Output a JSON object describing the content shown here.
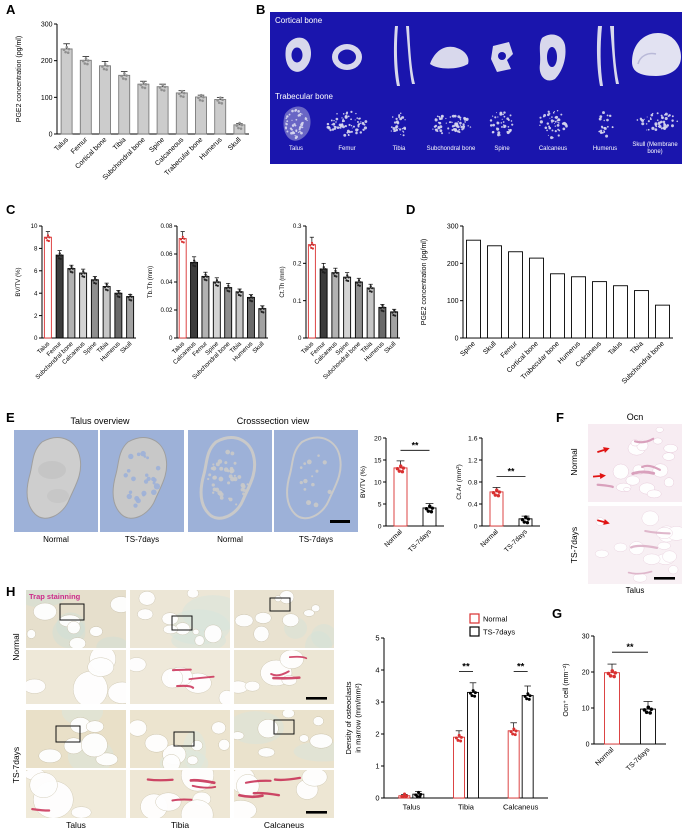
{
  "colors": {
    "accent_red": "#d93030",
    "microct_background": "#1a15ad",
    "panel_e_background": "#9db1d8",
    "bone_gray": "#d8d8ec",
    "trap_stain_magenta": "#cc2b8a",
    "trap_red": "#c83358"
  },
  "panels": {
    "A": {
      "label": "A",
      "chart_data": {
        "type": "bar",
        "ylabel": "PGE2 concentration (pg/ml)",
        "ylim": [
          0,
          300
        ],
        "yticks": [
          0,
          100,
          200,
          300
        ],
        "categories": [
          "Talus",
          "Femur",
          "Cortical bone",
          "Tibia",
          "Subchondral bone",
          "Spine",
          "Calcaneous",
          "Trabecular bone",
          "Humerus",
          "Skull"
        ],
        "values": [
          232,
          201,
          186,
          160,
          136,
          129,
          112,
          101,
          94,
          25
        ],
        "errors": [
          14,
          10,
          12,
          10,
          8,
          7,
          6,
          5,
          6,
          3
        ],
        "fill": "#cccccc",
        "stroke": "#7a7a7a",
        "dot_color": "#909090"
      }
    },
    "B": {
      "label": "B",
      "cortical_label": "Cortical bone",
      "trabecular_label": "Trabecular bone",
      "bones": [
        "Talus",
        "Femur",
        "Tibia",
        "Subchondral bone",
        "Spine",
        "Calcaneus",
        "Humerus",
        "Skull (Membrane bone)"
      ]
    },
    "C": {
      "label": "C",
      "charts": [
        {
          "type": "bar",
          "ylabel": "BV/TV (%)",
          "ylim": [
            0,
            10
          ],
          "yticks": [
            0,
            2,
            4,
            6,
            8,
            10
          ],
          "categories": [
            "Talus",
            "Femur",
            "Subchondral bone",
            "Calcaneus",
            "Spine",
            "Tibia",
            "Humerus",
            "Skull"
          ],
          "values": [
            9.0,
            7.4,
            6.2,
            5.8,
            5.2,
            4.6,
            4.0,
            3.7
          ],
          "errors": [
            0.5,
            0.4,
            0.3,
            0.35,
            0.3,
            0.3,
            0.25,
            0.2
          ],
          "fills": [
            "#ffffff",
            "#3c3c3c",
            "#b2b2b2",
            "#d4d4d4",
            "#8e8e8e",
            "#c6c6c6",
            "#6a6a6a",
            "#a2a2a2"
          ],
          "strokes": [
            "#d93030",
            "#000000",
            "#000000",
            "#000000",
            "#000000",
            "#000000",
            "#000000",
            "#000000"
          ],
          "dot_colors": [
            "#d93030",
            "#222222",
            "#222222",
            "#222222",
            "#222222",
            "#222222",
            "#222222",
            "#222222"
          ]
        },
        {
          "type": "bar",
          "ylabel": "Tb.Th (mm)",
          "ylim": [
            0,
            0.08
          ],
          "yticks": [
            0,
            0.02,
            0.04,
            0.06,
            0.08
          ],
          "categories": [
            "Talus",
            "Calcaneus",
            "Femur",
            "Spine",
            "Subchondral bone",
            "Tibia",
            "Humerus",
            "Skull"
          ],
          "values": [
            0.071,
            0.054,
            0.044,
            0.04,
            0.036,
            0.033,
            0.029,
            0.021
          ],
          "errors": [
            0.005,
            0.004,
            0.003,
            0.003,
            0.003,
            0.002,
            0.002,
            0.002
          ],
          "fills": [
            "#ffffff",
            "#3c3c3c",
            "#b2b2b2",
            "#d4d4d4",
            "#8e8e8e",
            "#c6c6c6",
            "#6a6a6a",
            "#a2a2a2"
          ],
          "strokes": [
            "#d93030",
            "#000000",
            "#000000",
            "#000000",
            "#000000",
            "#000000",
            "#000000",
            "#000000"
          ],
          "dot_colors": [
            "#d93030",
            "#222222",
            "#222222",
            "#222222",
            "#222222",
            "#222222",
            "#222222",
            "#222222"
          ]
        },
        {
          "type": "bar",
          "ylabel": "Ct.Th (mm)",
          "ylim": [
            0,
            0.3
          ],
          "yticks": [
            0,
            0.1,
            0.2,
            0.3
          ],
          "categories": [
            "Talus",
            "Femur",
            "Calcaneus",
            "Spine",
            "Subchondral bone",
            "Tibia",
            "Humerus",
            "Skull"
          ],
          "values": [
            0.25,
            0.185,
            0.175,
            0.163,
            0.15,
            0.134,
            0.082,
            0.07
          ],
          "errors": [
            0.02,
            0.015,
            0.012,
            0.012,
            0.01,
            0.01,
            0.008,
            0.007
          ],
          "fills": [
            "#ffffff",
            "#3c3c3c",
            "#b2b2b2",
            "#d4d4d4",
            "#8e8e8e",
            "#c6c6c6",
            "#6a6a6a",
            "#a2a2a2"
          ],
          "strokes": [
            "#d93030",
            "#000000",
            "#000000",
            "#000000",
            "#000000",
            "#000000",
            "#000000",
            "#000000"
          ],
          "dot_colors": [
            "#d93030",
            "#222222",
            "#222222",
            "#222222",
            "#222222",
            "#222222",
            "#222222",
            "#222222"
          ]
        }
      ]
    },
    "D": {
      "label": "D",
      "chart_data": {
        "type": "bar",
        "ylabel": "PGE2 concentration (pg/ml)",
        "ylim": [
          0,
          300
        ],
        "yticks": [
          0,
          100,
          200,
          300
        ],
        "categories": [
          "Spine",
          "Skull",
          "Femur",
          "Cortical bone",
          "Trabecular bone",
          "Humerus",
          "Calcaneus",
          "Talus",
          "Tibia",
          "Subchondral bone"
        ],
        "values": [
          262,
          247,
          231,
          214,
          172,
          164,
          151,
          140,
          127,
          88
        ],
        "fill": "#ffffff",
        "stroke": "#000000"
      }
    },
    "E": {
      "label": "E",
      "titles": [
        "Talus overview",
        "Crosssection view"
      ],
      "image_labels": [
        "Normal",
        "TS-7days",
        "Normal",
        "TS-7days"
      ],
      "charts": [
        {
          "type": "bar",
          "ylabel": "BV/TV (%)",
          "ylim": [
            0,
            20
          ],
          "yticks": [
            0,
            5,
            10,
            15,
            20
          ],
          "categories": [
            "Normal",
            "TS-7days"
          ],
          "values": [
            13.2,
            4.1
          ],
          "errors": [
            1.6,
            1.0
          ],
          "fills": [
            "#ffffff",
            "#ffffff"
          ],
          "strokes": [
            "#d93030",
            "#000000"
          ],
          "dot_colors": [
            "#d93030",
            "#000000"
          ],
          "sig": [
            {
              "a": [
                0,
                0
              ],
              "b": [
                1,
                0
              ],
              "v": 17.2,
              "label": "**"
            }
          ]
        },
        {
          "type": "bar",
          "ylabel": "Ct.Ar (mm²)",
          "ylim": [
            0,
            1.6
          ],
          "yticks": [
            0,
            0.4,
            0.8,
            1.2,
            1.6
          ],
          "categories": [
            "Normal",
            "TS-7days"
          ],
          "values": [
            0.62,
            0.13
          ],
          "errors": [
            0.08,
            0.05
          ],
          "fills": [
            "#ffffff",
            "#ffffff"
          ],
          "strokes": [
            "#d93030",
            "#000000"
          ],
          "dot_colors": [
            "#d93030",
            "#000000"
          ],
          "sig": [
            {
              "a": [
                0,
                0
              ],
              "b": [
                1,
                0
              ],
              "v": 0.9,
              "label": "**"
            }
          ]
        }
      ]
    },
    "F": {
      "label": "F",
      "title": "Ocn",
      "row_labels": [
        "Normal",
        "TS-7days"
      ],
      "bottom_label": "Talus"
    },
    "G": {
      "label": "G",
      "chart_data": {
        "type": "bar",
        "ylabel": "Ocn⁺ cell (mm⁻²)",
        "ylim": [
          0,
          30
        ],
        "yticks": [
          0,
          10,
          20,
          30
        ],
        "categories": [
          "Normal",
          "TS-7days"
        ],
        "values": [
          19.8,
          9.7
        ],
        "errors": [
          2.4,
          2.1
        ],
        "fills": [
          "#ffffff",
          "#ffffff"
        ],
        "strokes": [
          "#d93030",
          "#000000"
        ],
        "dot_colors": [
          "#d93030",
          "#000000"
        ],
        "sig": [
          {
            "a": [
              0,
              0
            ],
            "b": [
              1,
              0
            ],
            "v": 25.5,
            "label": "**"
          }
        ]
      }
    },
    "H": {
      "label": "H",
      "stain_label": "Trap stainning",
      "row_labels": [
        "Normal",
        "TS-7days"
      ],
      "col_labels": [
        "Talus",
        "Tibia",
        "Calcaneus"
      ],
      "chart_data": {
        "type": "bar",
        "ylabel_lines": [
          "Density of osteoclasts",
          "in marrow (mm/mm²)"
        ],
        "ylim": [
          0,
          5
        ],
        "yticks": [
          0,
          1,
          2,
          3,
          4,
          5
        ],
        "categories": [
          "Talus",
          "Tibia",
          "Calcaneus"
        ],
        "legend": [
          "Normal",
          "TS-7days"
        ],
        "series": [
          {
            "name": "Normal",
            "stroke": "#d93030",
            "fill": "#ffffff",
            "dot_color": "#d93030",
            "values": [
              0.07,
              1.9,
              2.1
            ],
            "errors": [
              0.04,
              0.2,
              0.25
            ]
          },
          {
            "name": "TS-7days",
            "stroke": "#000000",
            "fill": "#ffffff",
            "dot_color": "#000000",
            "values": [
              0.12,
              3.3,
              3.2
            ],
            "errors": [
              0.08,
              0.3,
              0.3
            ]
          }
        ],
        "sig": [
          {
            "a": [
              1,
              0
            ],
            "b": [
              1,
              1
            ],
            "v": 3.95,
            "label": "**"
          },
          {
            "a": [
              2,
              0
            ],
            "b": [
              2,
              1
            ],
            "v": 3.95,
            "label": "**"
          }
        ]
      }
    }
  }
}
